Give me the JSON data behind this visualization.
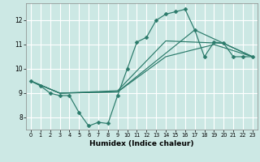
{
  "title": "",
  "xlabel": "Humidex (Indice chaleur)",
  "ylabel": "",
  "bg_color": "#cce8e4",
  "grid_color": "#ffffff",
  "line_color": "#2a7a6a",
  "xlim": [
    -0.5,
    23.5
  ],
  "ylim": [
    7.5,
    12.7
  ],
  "xticks": [
    0,
    1,
    2,
    3,
    4,
    5,
    6,
    7,
    8,
    9,
    10,
    11,
    12,
    13,
    14,
    15,
    16,
    17,
    18,
    19,
    20,
    21,
    22,
    23
  ],
  "yticks": [
    8,
    9,
    10,
    11,
    12
  ],
  "series": [
    {
      "x": [
        0,
        1,
        2,
        3,
        4,
        5,
        6,
        7,
        8,
        9,
        10,
        11,
        12,
        13,
        14,
        15,
        16,
        17,
        18,
        19,
        20,
        21,
        22,
        23
      ],
      "y": [
        9.5,
        9.3,
        9.0,
        8.9,
        8.9,
        8.2,
        7.65,
        7.8,
        7.75,
        8.9,
        10.0,
        11.1,
        11.3,
        12.0,
        12.25,
        12.35,
        12.45,
        11.6,
        10.5,
        11.1,
        11.05,
        10.5,
        10.5,
        10.5
      ],
      "marker": "D",
      "markersize": 2.5
    },
    {
      "x": [
        0,
        3,
        9,
        14,
        19,
        23
      ],
      "y": [
        9.5,
        9.0,
        9.05,
        10.5,
        11.0,
        10.5
      ],
      "marker": null,
      "markersize": 0
    },
    {
      "x": [
        0,
        3,
        9,
        14,
        20,
        23
      ],
      "y": [
        9.5,
        9.0,
        9.1,
        11.15,
        11.05,
        10.5
      ],
      "marker": null,
      "markersize": 0
    },
    {
      "x": [
        0,
        3,
        9,
        17,
        23
      ],
      "y": [
        9.5,
        9.0,
        9.05,
        11.6,
        10.5
      ],
      "marker": null,
      "markersize": 0
    }
  ]
}
